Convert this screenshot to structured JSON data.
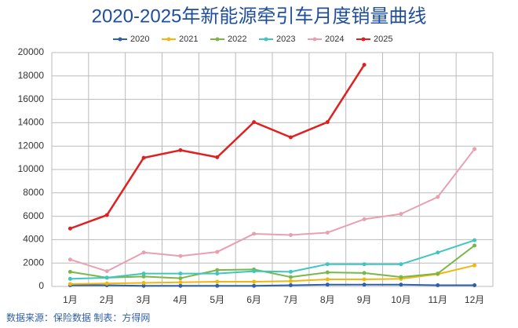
{
  "chart_data": {
    "type": "line",
    "title": "2020-2025年新能源牵引车月度销量曲线",
    "source": "数据来源：保险数据  制表：方得网",
    "categories": [
      "1月",
      "2月",
      "3月",
      "4月",
      "5月",
      "6月",
      "7月",
      "8月",
      "9月",
      "10月",
      "11月",
      "12月"
    ],
    "series": [
      {
        "name": "2020",
        "color": "#2f5fa8",
        "values": [
          100,
          100,
          50,
          50,
          50,
          50,
          100,
          150,
          150,
          150,
          100,
          100
        ]
      },
      {
        "name": "2021",
        "color": "#f2b70f",
        "values": [
          200,
          250,
          300,
          350,
          400,
          400,
          450,
          600,
          600,
          650,
          1050,
          1800
        ]
      },
      {
        "name": "2022",
        "color": "#7ab648",
        "values": [
          1250,
          750,
          850,
          700,
          1400,
          1450,
          800,
          1200,
          1150,
          800,
          1100,
          3500
        ]
      },
      {
        "name": "2023",
        "color": "#3fc6c0",
        "values": [
          650,
          750,
          1100,
          1100,
          1100,
          1300,
          1250,
          1900,
          1900,
          1900,
          2900,
          3950
        ]
      },
      {
        "name": "2024",
        "color": "#e8a0b0",
        "values": [
          2300,
          1300,
          2900,
          2600,
          2950,
          4500,
          4400,
          4600,
          5750,
          6200,
          7650,
          11750
        ]
      },
      {
        "name": "2025",
        "color": "#e02020",
        "values": [
          4950,
          6100,
          11000,
          11650,
          11050,
          14050,
          12750,
          14050,
          18950,
          null,
          null,
          null
        ]
      }
    ],
    "ylim": [
      0,
      20000
    ],
    "yticks": [
      0,
      2000,
      4000,
      6000,
      8000,
      10000,
      12000,
      14000,
      16000,
      18000,
      20000
    ],
    "grid": true
  }
}
